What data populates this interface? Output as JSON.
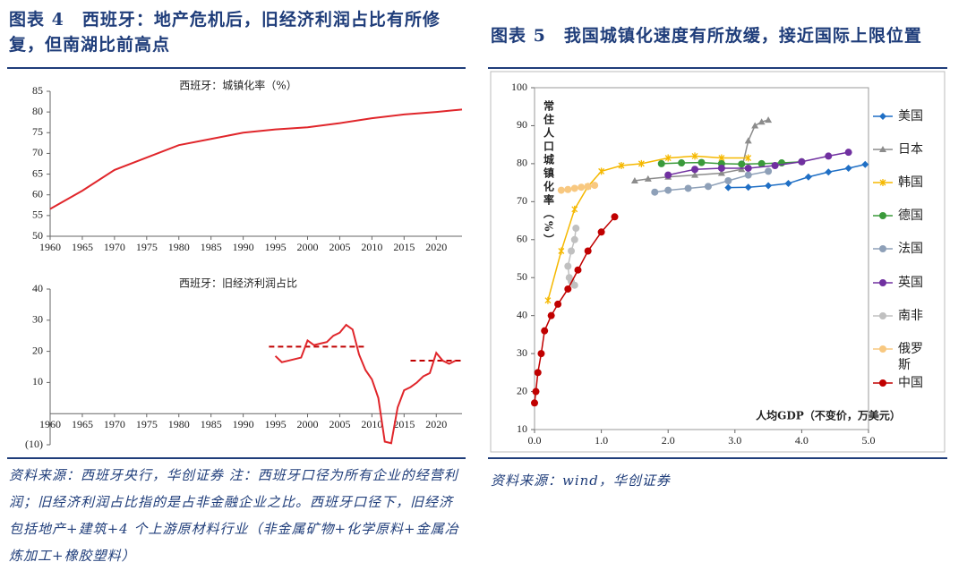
{
  "figures": [
    {
      "title": "图表 4　西班牙：地产危机后，旧经济利润占比有所修复，但南湖比前高点",
      "source": "资料来源：西班牙央行，华创证券 注：西班牙口径为所有企业的经营利润；旧经济利润占比指的是占非金融企业之比。西班牙口径下，旧经济包括地产+建筑+4 个上游原材料行业（非金属矿物+化学原料+金属冶炼加工+橡胶塑料）"
    },
    {
      "title": "图表 5　我国城镇化速度有所放缓，接近国际上限位置",
      "source": "资料来源：wind，华创证券"
    }
  ],
  "chart_data": [
    {
      "type": "line",
      "title": "西班牙：城镇化率（%）",
      "color": "#e0262b",
      "x": [
        1960,
        1965,
        1970,
        1975,
        1980,
        1985,
        1990,
        1995,
        2000,
        2005,
        2010,
        2015,
        2020,
        2024
      ],
      "values": [
        56.6,
        61,
        66,
        69,
        72,
        73.5,
        75,
        75.8,
        76.3,
        77.3,
        78.5,
        79.4,
        80,
        80.6
      ],
      "xlim": [
        1960,
        2024
      ],
      "xticks": [
        1960,
        1965,
        1970,
        1975,
        1980,
        1985,
        1990,
        1995,
        2000,
        2005,
        2010,
        2015,
        2020
      ],
      "ylim": [
        50,
        85
      ],
      "yticks": [
        50,
        55,
        60,
        65,
        70,
        75,
        80,
        85
      ]
    },
    {
      "type": "line",
      "title": "西班牙：旧经济利润占比",
      "color": "#e0262b",
      "negative_label_color": "#c00000",
      "x": [
        1995,
        1996,
        1997,
        1998,
        1999,
        2000,
        2001,
        2002,
        2003,
        2004,
        2005,
        2006,
        2007,
        2008,
        2009,
        2010,
        2011,
        2012,
        2013,
        2014,
        2015,
        2016,
        2017,
        2018,
        2019,
        2020,
        2021,
        2022,
        2023
      ],
      "values": [
        18.5,
        16.5,
        17,
        17.5,
        18,
        23.5,
        22,
        22.5,
        23,
        25,
        26,
        28.5,
        27,
        19,
        14,
        11,
        5,
        -9,
        -9.5,
        2,
        7.5,
        8.5,
        10,
        12,
        13,
        19.5,
        17,
        16,
        17
      ],
      "ref_lines": [
        {
          "x": [
            1994,
            2009
          ],
          "value": 21.5
        },
        {
          "x": [
            2016,
            2024
          ],
          "value": 17
        }
      ],
      "xlim": [
        1960,
        2024
      ],
      "xticks": [
        1960,
        1965,
        1970,
        1975,
        1980,
        1985,
        1990,
        1995,
        2000,
        2005,
        2010,
        2015,
        2020
      ],
      "ylim": [
        -10,
        40
      ],
      "yticks": [
        {
          "value": -10,
          "label": "(10)"
        },
        10,
        20,
        30,
        40
      ]
    },
    {
      "type": "scatter",
      "xlabel": "人均GDP（不变价，万美元）",
      "ylabel": "常住人口城镇化率（%）",
      "xlim": [
        0,
        5
      ],
      "xticks": [
        {
          "value": 0,
          "label": "0.0"
        },
        {
          "value": 1,
          "label": "1.0"
        },
        {
          "value": 2,
          "label": "2.0"
        },
        {
          "value": 3,
          "label": "3.0"
        },
        {
          "value": 4,
          "label": "4.0"
        },
        {
          "value": 5,
          "label": "5.0"
        }
      ],
      "ylim": [
        10,
        100
      ],
      "yticks": [
        10,
        20,
        30,
        40,
        50,
        60,
        70,
        80,
        90,
        100
      ],
      "series": [
        {
          "name": "美国",
          "color": "#1f6fc5",
          "marker": "diamond",
          "x": [
            2.9,
            3.2,
            3.5,
            3.8,
            4.1,
            4.4,
            4.7,
            4.95
          ],
          "values": [
            73.7,
            73.8,
            74.2,
            74.8,
            76.5,
            77.8,
            78.8,
            79.8
          ]
        },
        {
          "name": "日本",
          "color": "#8c8c8c",
          "marker": "triangle",
          "x": [
            1.5,
            1.7,
            2.0,
            2.4,
            2.8,
            3.1,
            3.2,
            3.3,
            3.4,
            3.5
          ],
          "values": [
            75.5,
            76,
            76.5,
            77,
            77.5,
            78.5,
            86,
            90,
            91,
            91.5
          ]
        },
        {
          "name": "韩国",
          "color": "#f5b800",
          "marker": "x",
          "x": [
            0.2,
            0.4,
            0.6,
            0.8,
            1.0,
            1.3,
            1.6,
            2.0,
            2.4,
            2.8,
            3.2
          ],
          "values": [
            44,
            57,
            68,
            74,
            78,
            79.5,
            80,
            81.5,
            82,
            81.5,
            81.5
          ]
        },
        {
          "name": "德国",
          "color": "#3a9a3a",
          "marker": "circle",
          "x": [
            1.9,
            2.2,
            2.5,
            2.8,
            3.1,
            3.4,
            3.7,
            4.0
          ],
          "values": [
            80,
            80.2,
            80.3,
            80,
            79.9,
            80,
            80.2,
            80.5
          ]
        },
        {
          "name": "法国",
          "color": "#8ea0b8",
          "marker": "circle",
          "x": [
            1.8,
            2.0,
            2.3,
            2.6,
            2.9,
            3.2,
            3.5
          ],
          "values": [
            72.5,
            73,
            73.5,
            74,
            75.5,
            77,
            78
          ]
        },
        {
          "name": "英国",
          "color": "#7030a0",
          "marker": "circle",
          "x": [
            2.0,
            2.4,
            2.8,
            3.2,
            3.6,
            4.0,
            4.4,
            4.7
          ],
          "values": [
            77,
            78.5,
            78.8,
            78.8,
            79.5,
            80.5,
            82,
            83
          ]
        },
        {
          "name": "南非",
          "color": "#c0c0c0",
          "marker": "circle",
          "x": [
            0.62,
            0.6,
            0.55,
            0.5,
            0.52,
            0.55,
            0.6
          ],
          "values": [
            63,
            60,
            57,
            53,
            50,
            49,
            48
          ]
        },
        {
          "name": "俄罗斯",
          "color": "#f8c880",
          "marker": "circle",
          "x": [
            0.4,
            0.5,
            0.6,
            0.7,
            0.8,
            0.9
          ],
          "values": [
            73,
            73.2,
            73.5,
            73.8,
            74,
            74.3
          ]
        },
        {
          "name": "中国",
          "color": "#c00000",
          "marker": "circle",
          "x": [
            0.0,
            0.02,
            0.05,
            0.1,
            0.15,
            0.25,
            0.35,
            0.5,
            0.65,
            0.8,
            1.0,
            1.2
          ],
          "values": [
            17,
            20,
            25,
            30,
            36,
            40,
            43,
            47,
            52,
            57,
            62,
            66
          ]
        }
      ]
    }
  ]
}
